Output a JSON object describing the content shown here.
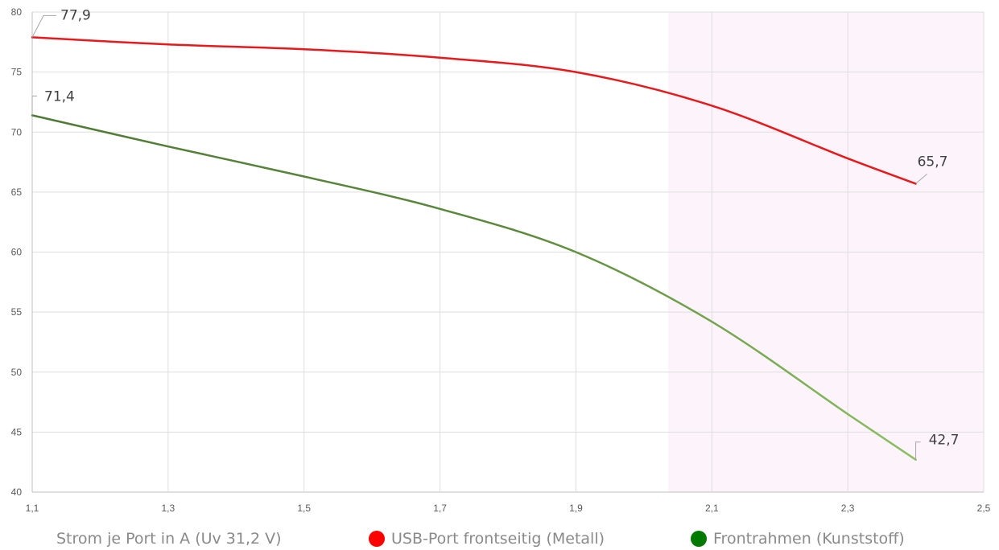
{
  "chart_data": {
    "type": "line",
    "xlabel": "Strom je Port in A (Uv 31,2 V)",
    "ylabel": "",
    "xlim": [
      1.1,
      2.5
    ],
    "ylim": [
      40,
      80
    ],
    "x_ticks": [
      "1,1",
      "1,3",
      "1,5",
      "1,7",
      "1,9",
      "2,1",
      "2,3",
      "2,5"
    ],
    "y_ticks": [
      "40",
      "45",
      "50",
      "55",
      "60",
      "65",
      "70",
      "75",
      "80"
    ],
    "grid": true,
    "legend_position": "bottom",
    "series": [
      {
        "name": "USB-Port frontseitig (Metall)",
        "color": "#e8191c",
        "x": [
          1.1,
          1.3,
          1.5,
          1.7,
          1.9,
          2.1,
          2.3,
          2.4
        ],
        "values": [
          77.9,
          77.3,
          76.9,
          76.2,
          75.0,
          72.2,
          67.8,
          65.7
        ],
        "labels": [
          {
            "text": "77,9",
            "at": "start"
          },
          {
            "text": "65,7",
            "at": "end"
          }
        ]
      },
      {
        "name": "Frontrahmen (Kunststoff)",
        "color": "#5c8a3c",
        "x": [
          1.1,
          1.3,
          1.5,
          1.7,
          1.9,
          2.1,
          2.3,
          2.4
        ],
        "values": [
          71.4,
          68.8,
          66.3,
          63.6,
          60.0,
          54.2,
          46.5,
          42.7
        ],
        "labels": [
          {
            "text": "71,4",
            "at": "start"
          },
          {
            "text": "42,7",
            "at": "end"
          }
        ]
      }
    ]
  },
  "legend": {
    "title": "Strom je Port in A (Uv 31,2 V)",
    "entries": [
      {
        "label": "USB-Port frontseitig (Metall)",
        "color": "#ff0000"
      },
      {
        "label": "Frontrahmen (Kunststoff)",
        "color": "#007a00"
      }
    ]
  }
}
